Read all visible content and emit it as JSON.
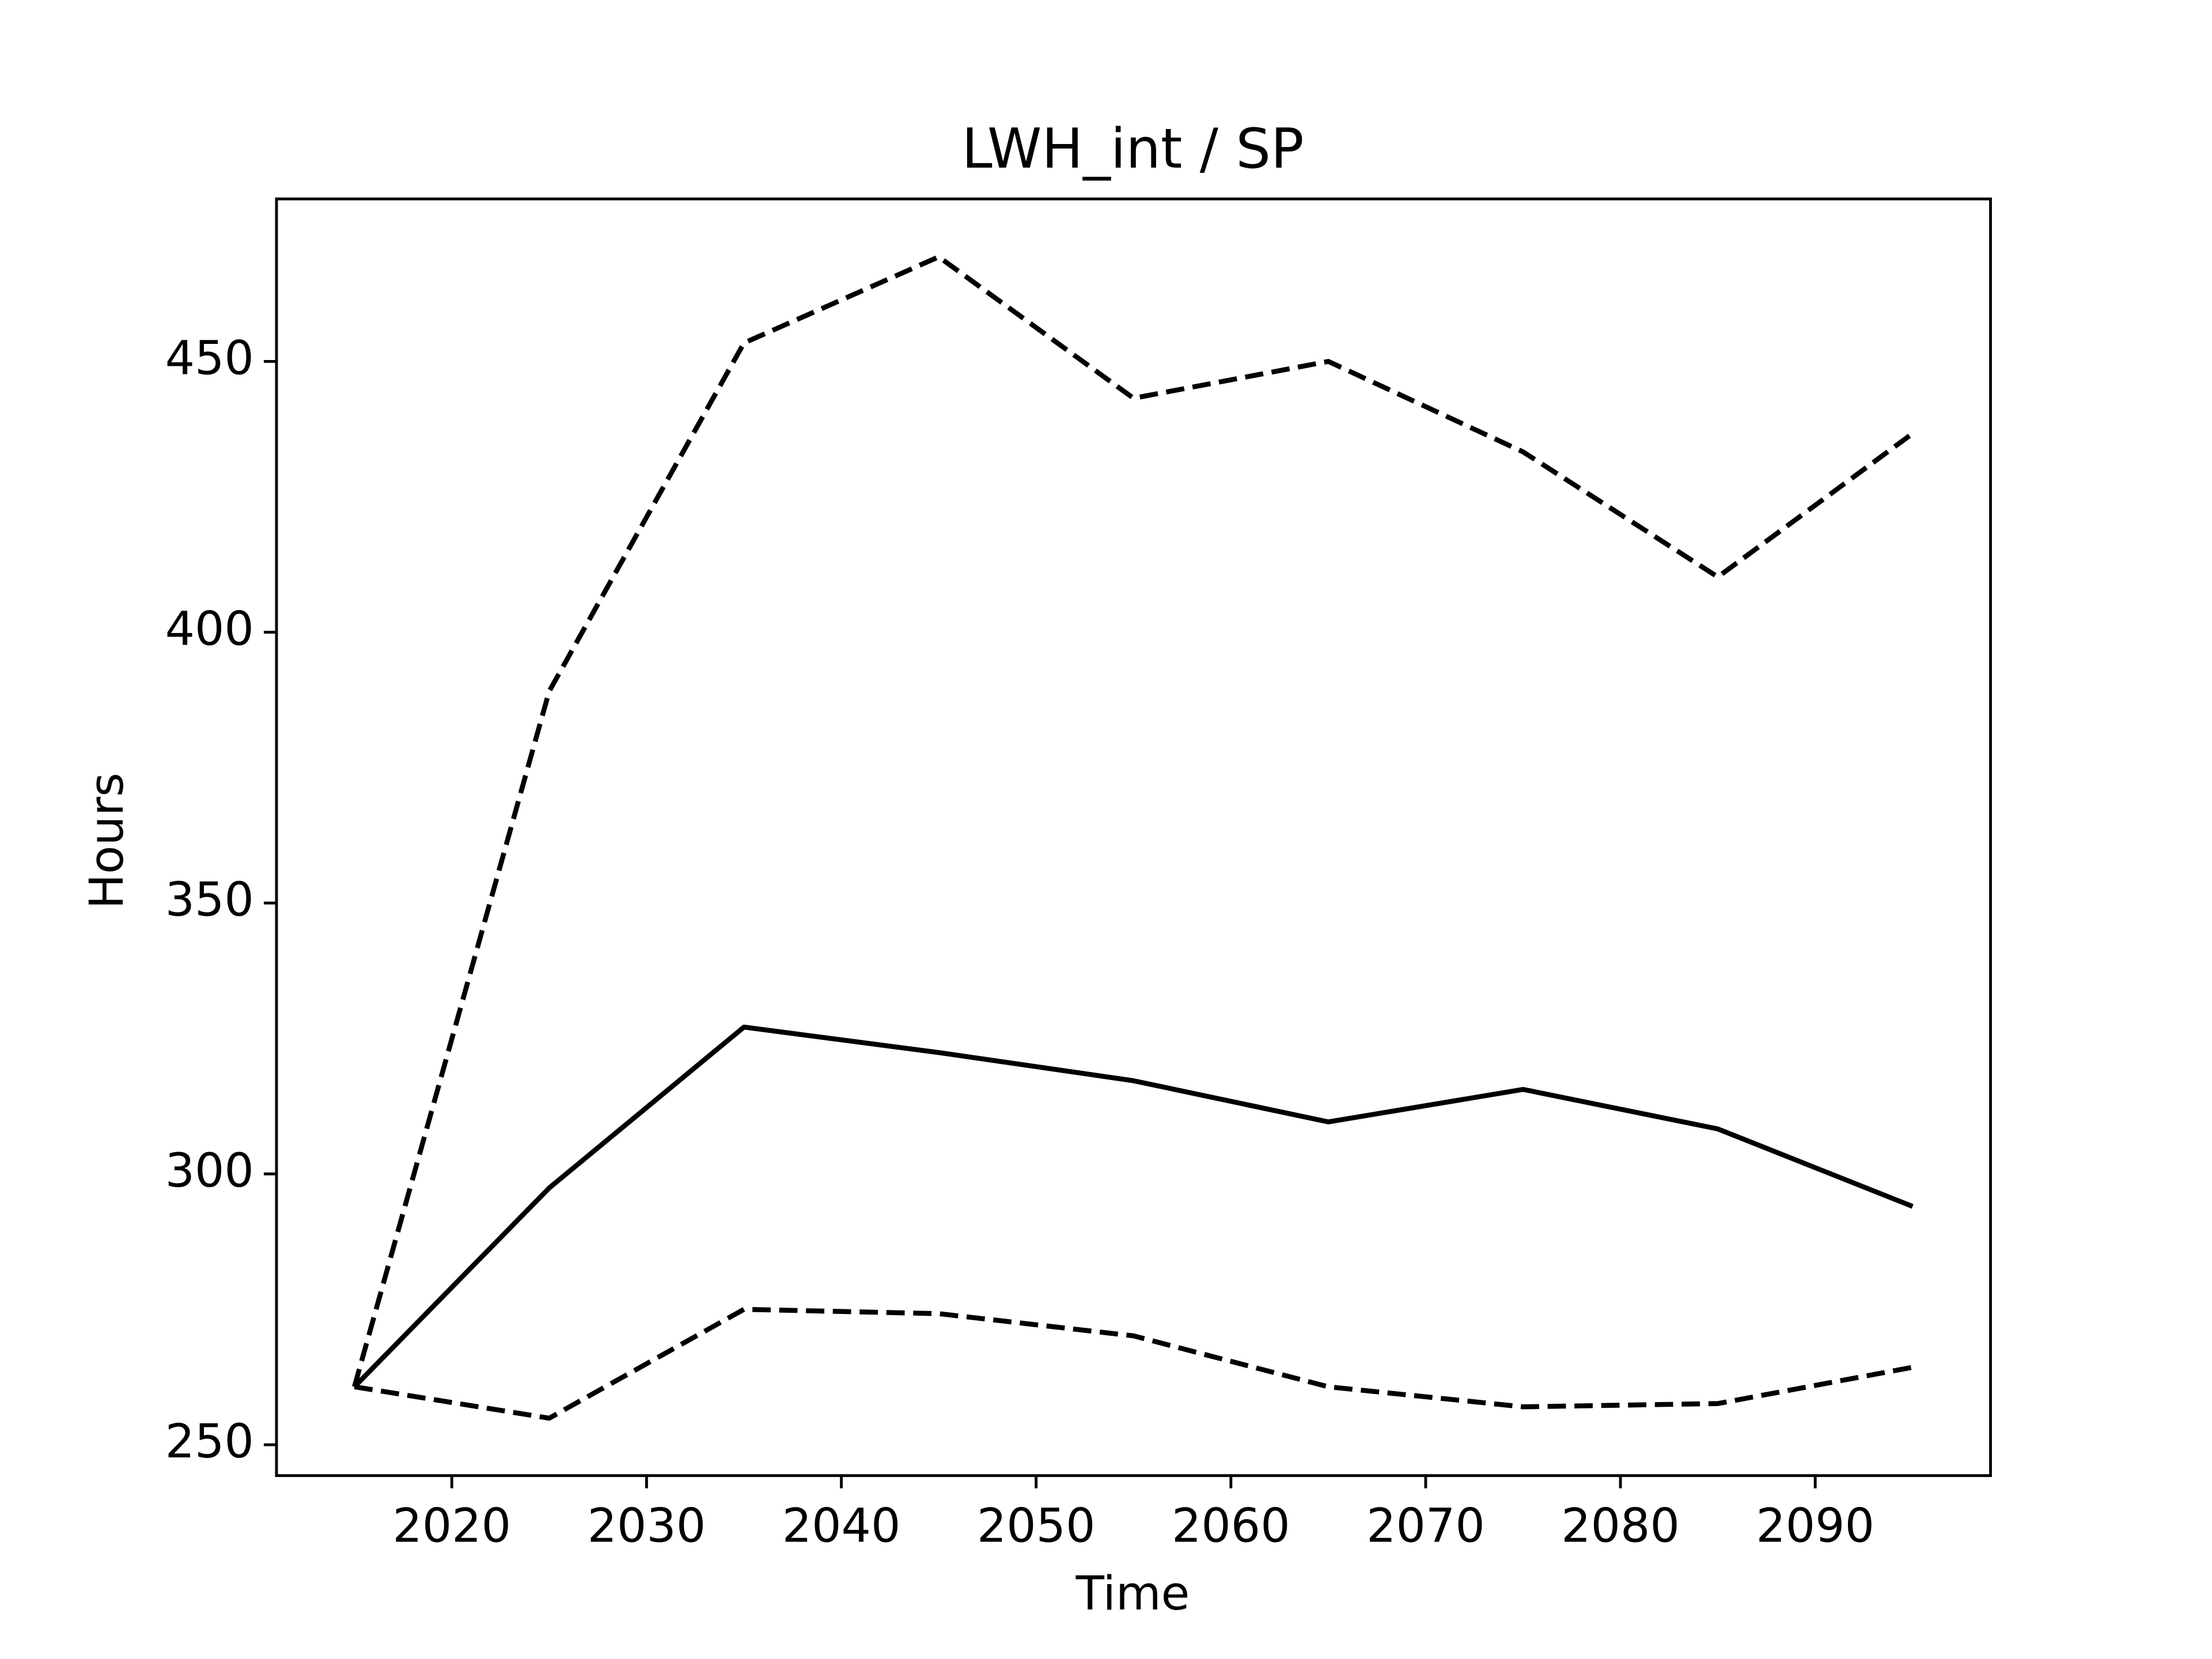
{
  "chart_data": {
    "type": "line",
    "title": "LWH_int / SP",
    "xlabel": "Time",
    "ylabel": "Hours",
    "x": [
      2015,
      2025,
      2035,
      2045,
      2055,
      2065,
      2075,
      2085,
      2095
    ],
    "series": [
      {
        "color": "#000000",
        "dash": false,
        "values": [
          260.7,
          297.4,
          327.1,
          322.4,
          317.2,
          309.6,
          315.6,
          308.3,
          294.0
        ]
      },
      {
        "color": "#000000",
        "dash": true,
        "values": [
          260.7,
          389.1,
          453.4,
          469.3,
          443.2,
          450.0,
          433.3,
          410.2,
          436.7
        ]
      },
      {
        "color": "#000000",
        "dash": true,
        "values": [
          260.7,
          254.9,
          275.0,
          274.2,
          270.1,
          260.7,
          257.0,
          257.6,
          264.3
        ]
      }
    ],
    "xlim": [
      2011,
      2099
    ],
    "xticks": [
      2020,
      2030,
      2040,
      2050,
      2060,
      2070,
      2080,
      2090
    ],
    "ylim": [
      244.3,
      480
    ],
    "yticks": [
      250,
      300,
      350,
      400,
      450
    ],
    "grid": false
  }
}
